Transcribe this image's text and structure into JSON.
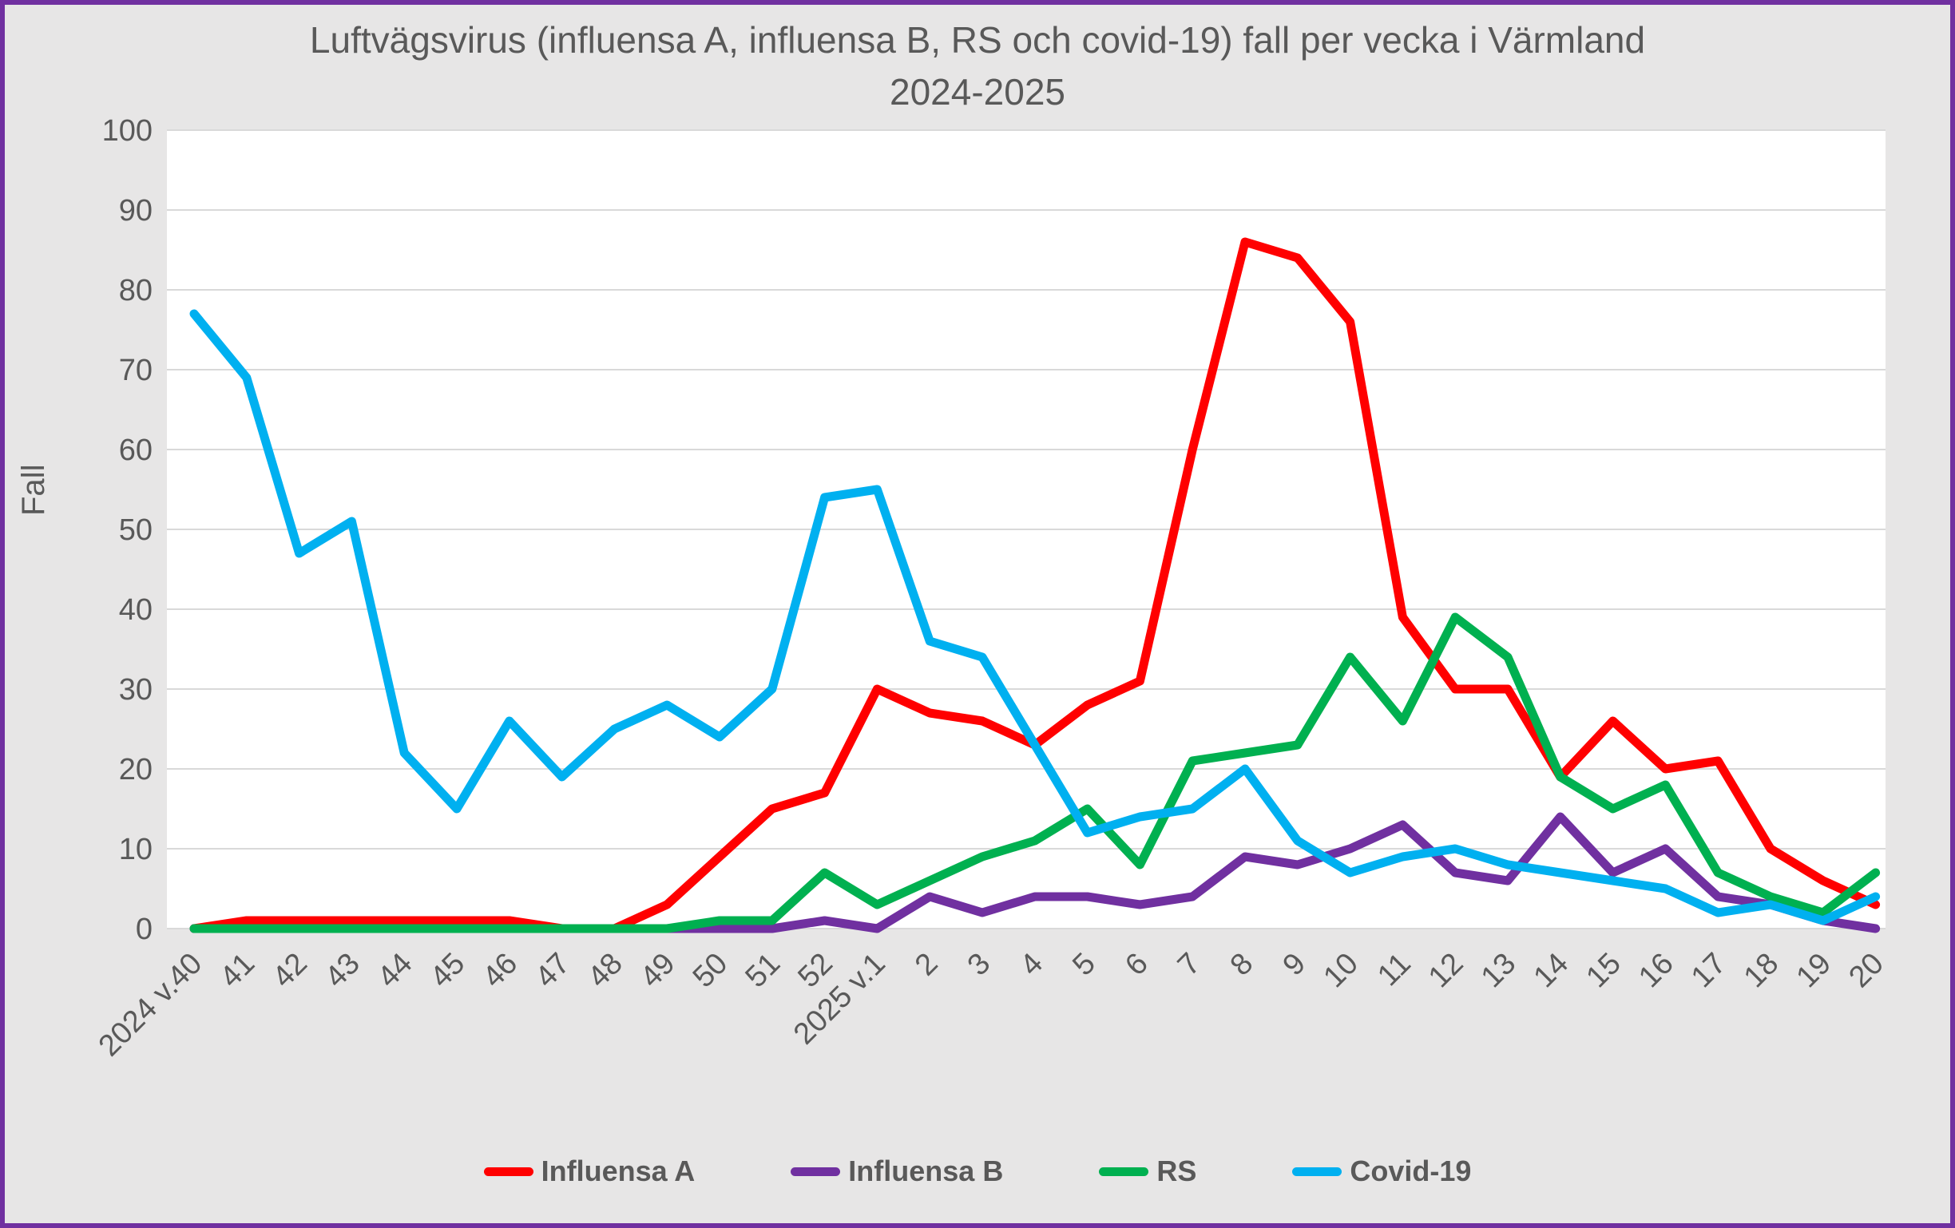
{
  "page": {
    "background": "#E7E6E6",
    "frame_border_color": "#7030A0",
    "plot_background": "#FFFFFF",
    "gridline_color": "#D9D9D9",
    "text_color": "#595959"
  },
  "chart_data": {
    "type": "line",
    "title": "Luftvägsvirus (influensa A, influensa B, RS och covid-19) fall per vecka i Värmland 2024-2025",
    "ylabel": "Fall",
    "xlabel": "",
    "ylim": [
      0,
      100
    ],
    "y_ticks": [
      0,
      10,
      20,
      30,
      40,
      50,
      60,
      70,
      80,
      90,
      100
    ],
    "grid": true,
    "legend_position": "bottom",
    "categories": [
      "2024 v.40",
      "41",
      "42",
      "43",
      "44",
      "45",
      "46",
      "47",
      "48",
      "49",
      "50",
      "51",
      "52",
      "2025 v.1",
      "2",
      "3",
      "4",
      "5",
      "6",
      "7",
      "8",
      "9",
      "10",
      "11",
      "12",
      "13",
      "14",
      "15",
      "16",
      "17",
      "18",
      "19",
      "20"
    ],
    "series": [
      {
        "name": "Influensa A",
        "color": "#FF0000",
        "values": [
          0,
          1,
          1,
          1,
          1,
          1,
          1,
          0,
          0,
          3,
          9,
          15,
          17,
          30,
          27,
          26,
          23,
          28,
          31,
          60,
          86,
          84,
          76,
          39,
          30,
          30,
          19,
          26,
          20,
          21,
          10,
          6,
          3
        ]
      },
      {
        "name": "Influensa B",
        "color": "#7030A0",
        "values": [
          0,
          0,
          0,
          0,
          0,
          0,
          0,
          0,
          0,
          0,
          0,
          0,
          1,
          0,
          4,
          2,
          4,
          4,
          3,
          4,
          9,
          8,
          10,
          13,
          7,
          6,
          14,
          7,
          10,
          4,
          3,
          1,
          0
        ]
      },
      {
        "name": "RS",
        "color": "#00B050",
        "values": [
          0,
          0,
          0,
          0,
          0,
          0,
          0,
          0,
          0,
          0,
          1,
          1,
          7,
          3,
          6,
          9,
          11,
          15,
          8,
          21,
          22,
          23,
          34,
          26,
          39,
          34,
          19,
          15,
          18,
          7,
          4,
          2,
          7
        ]
      },
      {
        "name": "Covid-19",
        "color": "#00B0F0",
        "values": [
          77,
          69,
          47,
          51,
          22,
          15,
          26,
          19,
          25,
          28,
          24,
          30,
          54,
          55,
          36,
          34,
          23,
          12,
          14,
          15,
          20,
          11,
          7,
          9,
          10,
          8,
          7,
          6,
          5,
          2,
          3,
          1,
          4
        ]
      }
    ]
  }
}
